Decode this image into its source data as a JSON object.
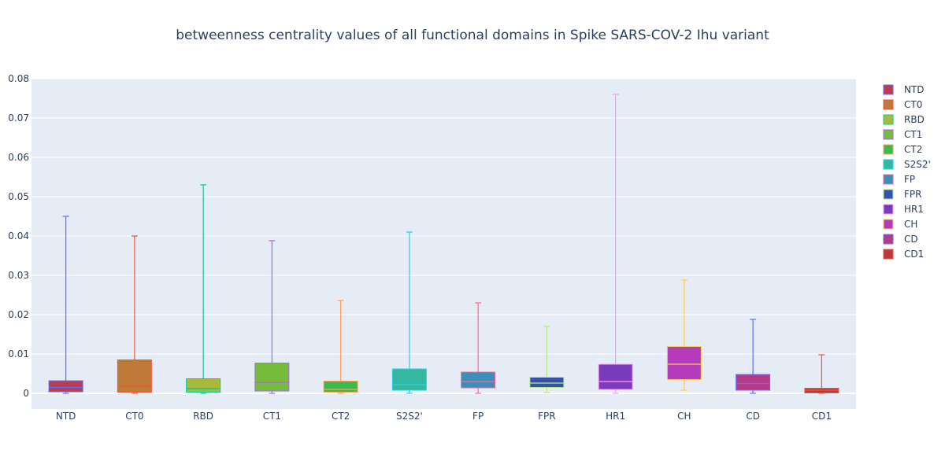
{
  "chart_data": {
    "type": "box",
    "title": "betweenness centrality values of all functional domains in Spike SARS-COV-2 Ihu variant",
    "xlabel": "",
    "ylabel": "",
    "ylim": [
      -0.004,
      0.08
    ],
    "yticks": [
      0,
      0.01,
      0.02,
      0.03,
      0.04,
      0.05,
      0.06,
      0.07,
      0.08
    ],
    "ytick_labels": [
      "0",
      "0.01",
      "0.02",
      "0.03",
      "0.04",
      "0.05",
      "0.06",
      "0.07",
      "0.08"
    ],
    "grid": true,
    "legend_position": "right",
    "series": [
      {
        "name": "NTD",
        "fill": "#b93c4f",
        "line": "#636efa",
        "min": 0,
        "q1": 0.0004,
        "median": 0.0015,
        "q3": 0.0032,
        "max": 0.045
      },
      {
        "name": "CT0",
        "fill": "#bf7a3a",
        "line": "#ef553b",
        "min": 0,
        "q1": 0.0003,
        "median": 0.0018,
        "q3": 0.0085,
        "max": 0.04
      },
      {
        "name": "RBD",
        "fill": "#a9b93a",
        "line": "#00cc96",
        "min": 0,
        "q1": 0.0003,
        "median": 0.0012,
        "q3": 0.0037,
        "max": 0.053
      },
      {
        "name": "CT1",
        "fill": "#77bb3a",
        "line": "#ab63fa",
        "min": 0,
        "q1": 0.0006,
        "median": 0.0028,
        "q3": 0.0077,
        "max": 0.0388
      },
      {
        "name": "CT2",
        "fill": "#3ab94c",
        "line": "#ffa15a",
        "min": 0,
        "q1": 0.0003,
        "median": 0.001,
        "q3": 0.0031,
        "max": 0.0236
      },
      {
        "name": "S2S2'",
        "fill": "#35b8a0",
        "line": "#19d3f3",
        "min": 0,
        "q1": 0.0008,
        "median": 0.0022,
        "q3": 0.0062,
        "max": 0.041
      },
      {
        "name": "FP",
        "fill": "#3a8fbb",
        "line": "#ff6692",
        "min": 0,
        "q1": 0.0014,
        "median": 0.003,
        "q3": 0.0054,
        "max": 0.023
      },
      {
        "name": "FPR",
        "fill": "#3552a8",
        "line": "#b6e880",
        "min": 0.0002,
        "q1": 0.0015,
        "median": 0.0026,
        "q3": 0.0041,
        "max": 0.017
      },
      {
        "name": "HR1",
        "fill": "#7a3bbc",
        "line": "#ff97ff",
        "min": 0,
        "q1": 0.001,
        "median": 0.003,
        "q3": 0.0074,
        "max": 0.076
      },
      {
        "name": "CH",
        "fill": "#b43cbb",
        "line": "#fecb52",
        "min": 0.0008,
        "q1": 0.0035,
        "median": 0.0074,
        "q3": 0.0119,
        "max": 0.0288
      },
      {
        "name": "CD",
        "fill": "#b43c87",
        "line": "#636efa",
        "min": 0,
        "q1": 0.0008,
        "median": 0.0025,
        "q3": 0.0048,
        "max": 0.0188
      },
      {
        "name": "CD1",
        "fill": "#b93a3a",
        "line": "#ef553b",
        "min": 0,
        "q1": 0.0001,
        "median": 0.0008,
        "q3": 0.0013,
        "max": 0.0098
      }
    ]
  }
}
